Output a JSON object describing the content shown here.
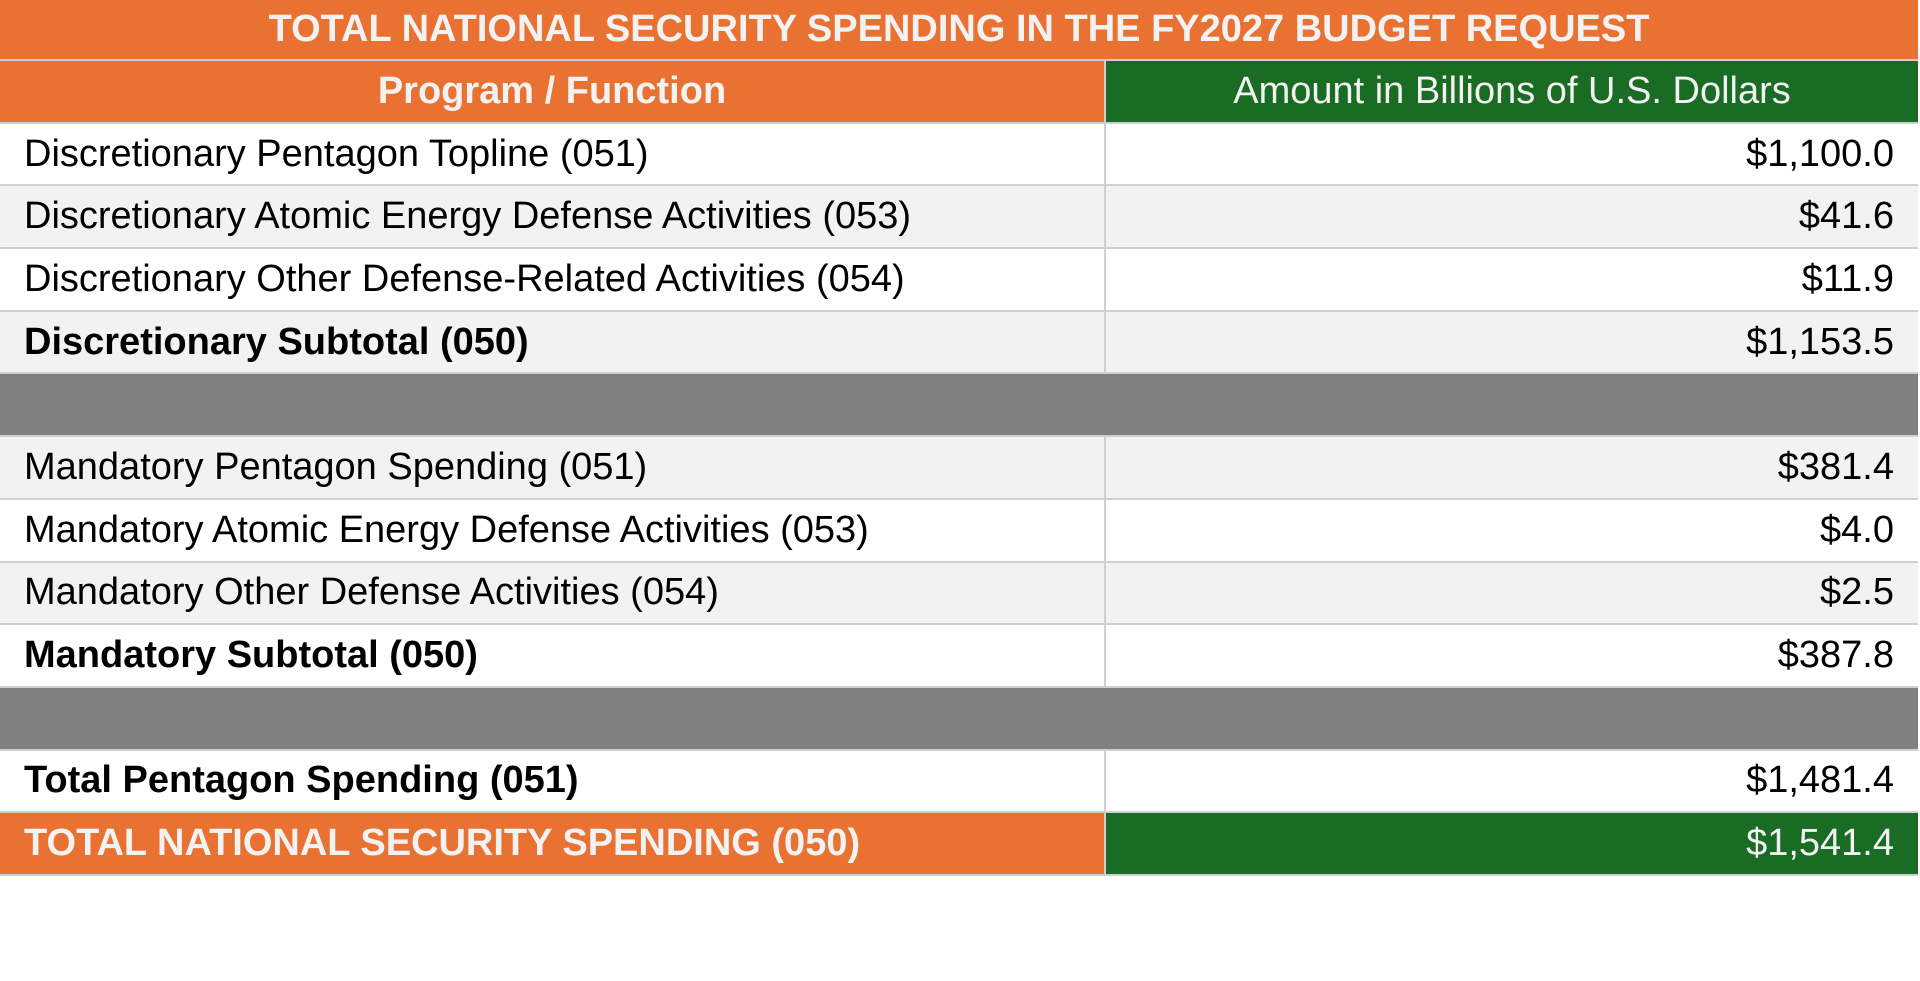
{
  "title": "TOTAL NATIONAL SECURITY SPENDING IN THE FY2027 BUDGET REQUEST",
  "headers": {
    "program": "Program / Function",
    "amount": "Amount in Billions of U.S. Dollars"
  },
  "colors": {
    "orange": "#e97132",
    "green": "#1a6b24",
    "separator": "#808080"
  },
  "rows": [
    {
      "label": "Discretionary Pentagon Topline (051)",
      "amount": "$1,100.0"
    },
    {
      "label": "Discretionary Atomic Energy Defense Activities (053)",
      "amount": "$41.6"
    },
    {
      "label": "Discretionary Other Defense-Related Activities (054)",
      "amount": "$11.9"
    },
    {
      "label": "Discretionary Subtotal (050)",
      "amount": "$1,153.5"
    },
    {
      "label": "Mandatory Pentagon Spending (051)",
      "amount": "$381.4"
    },
    {
      "label": "Mandatory Atomic Energy Defense Activities (053)",
      "amount": "$4.0"
    },
    {
      "label": "Mandatory Other Defense Activities (054)",
      "amount": "$2.5"
    },
    {
      "label": "Mandatory Subtotal (050)",
      "amount": "$387.8"
    },
    {
      "label": "Total Pentagon Spending (051)",
      "amount": "$1,481.4"
    },
    {
      "label": "TOTAL NATIONAL SECURITY SPENDING (050)",
      "amount": "$1,541.4"
    }
  ]
}
